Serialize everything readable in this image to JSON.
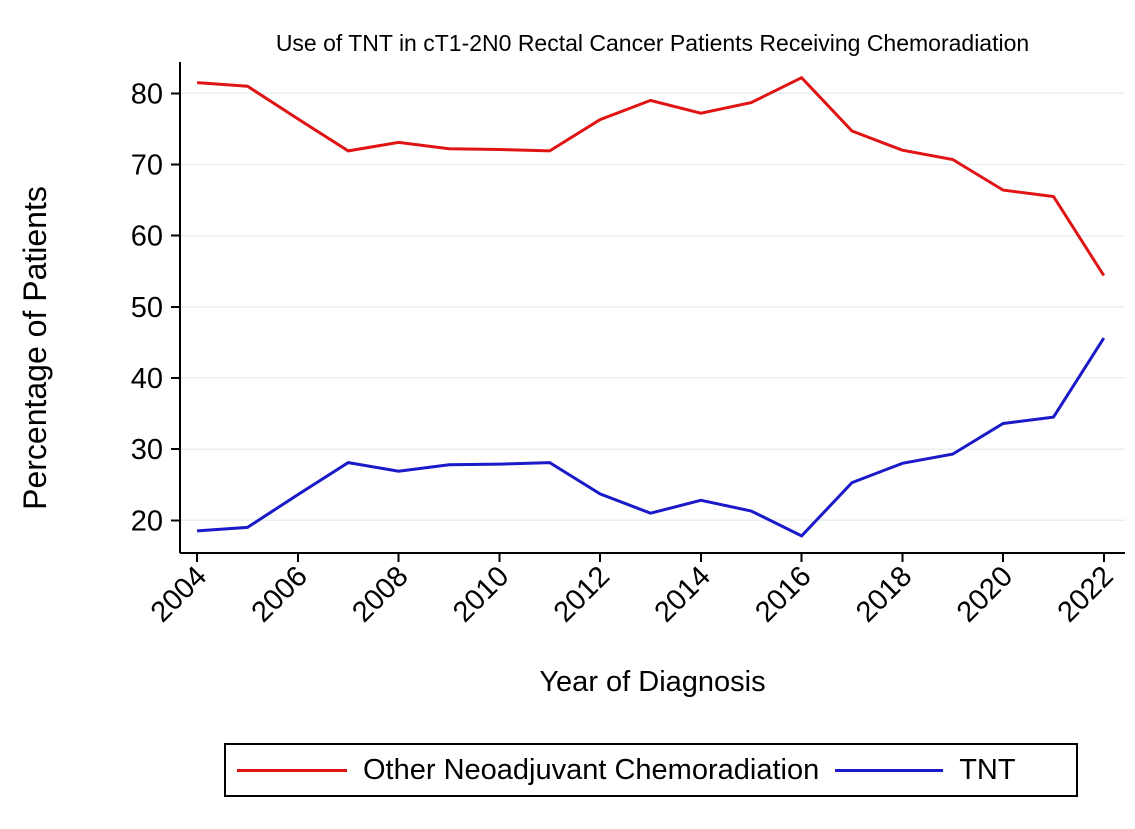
{
  "chart_data": {
    "type": "line",
    "title": "Use of TNT in cT1-2N0 Rectal Cancer Patients Receiving Chemoradiation",
    "xlabel": "Year of Diagnosis",
    "ylabel": "Percentage of Patients",
    "x": [
      2004,
      2005,
      2006,
      2007,
      2008,
      2009,
      2010,
      2011,
      2012,
      2013,
      2014,
      2015,
      2016,
      2017,
      2018,
      2019,
      2020,
      2021,
      2022
    ],
    "series": [
      {
        "name": "Other Neoadjuvant Chemoradiation",
        "color": "#e01414",
        "values": [
          81.5,
          81.0,
          76.4,
          71.9,
          73.1,
          72.2,
          72.1,
          71.9,
          76.3,
          79.0,
          77.2,
          78.7,
          82.2,
          74.7,
          72.0,
          70.7,
          66.4,
          65.5,
          54.4
        ]
      },
      {
        "name": "TNT",
        "color": "#1a1ac8",
        "values": [
          18.5,
          19.0,
          23.6,
          28.1,
          26.9,
          27.8,
          27.9,
          28.1,
          23.7,
          21.0,
          22.8,
          21.3,
          17.8,
          25.3,
          28.0,
          29.3,
          33.6,
          34.5,
          45.6
        ]
      }
    ],
    "x_ticks": [
      2004,
      2006,
      2008,
      2010,
      2012,
      2014,
      2016,
      2018,
      2020,
      2022
    ],
    "y_ticks": [
      20,
      30,
      40,
      50,
      60,
      70,
      80
    ],
    "xlim": [
      2003.66,
      2022.42
    ],
    "ylim": [
      15.4,
      84.4
    ],
    "grid": "horizontal-only",
    "gridline_color": "#e7eff1",
    "axis_color": "#000000",
    "background": "#ffffff",
    "legend_position": "bottom-box"
  }
}
